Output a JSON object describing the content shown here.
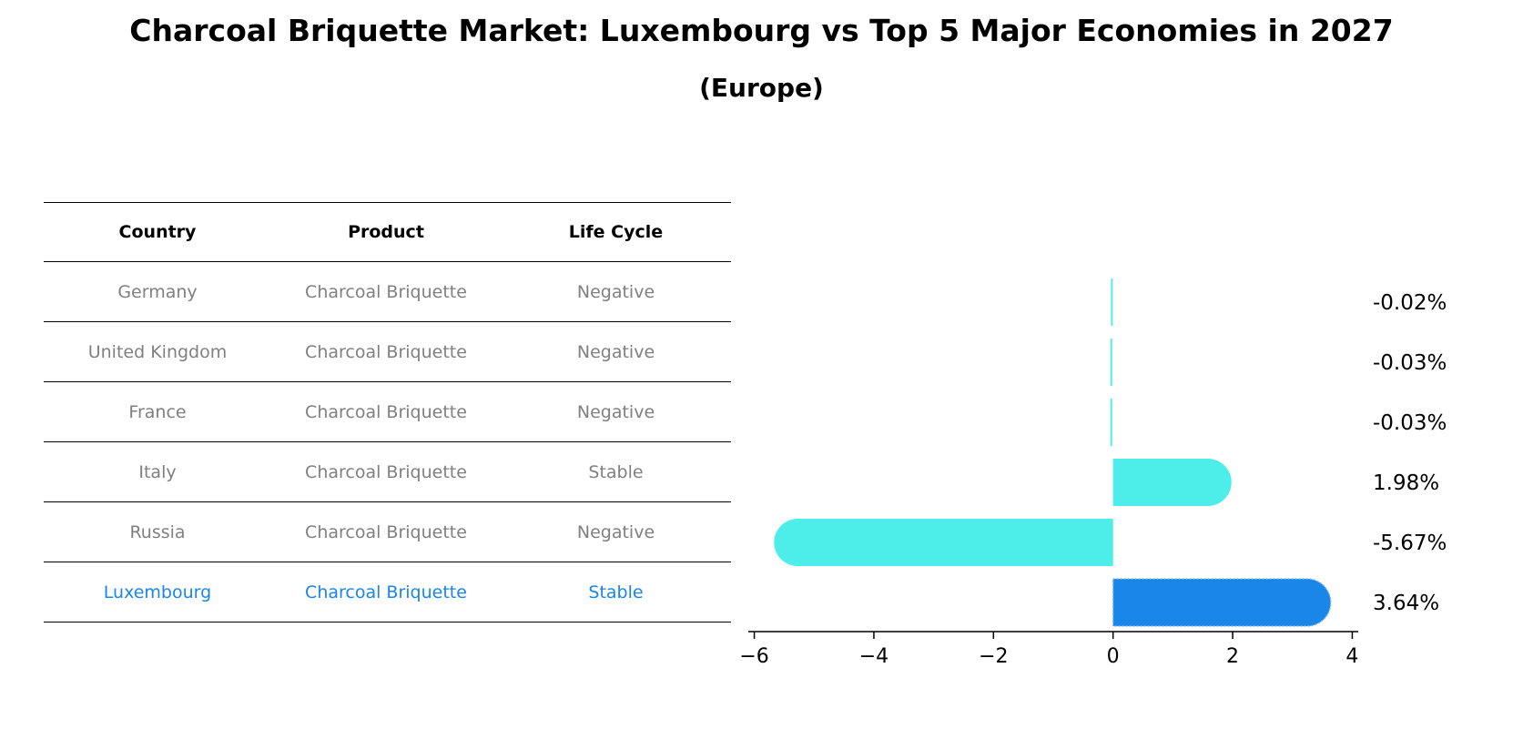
{
  "title": "Charcoal Briquette Market: Luxembourg vs Top 5 Major Economies in 2027",
  "subtitle": "(Europe)",
  "colors": {
    "bar": "#4deeea",
    "highlight": "#1a86e8"
  },
  "table": {
    "headers": [
      "Country",
      "Product",
      "Life Cycle"
    ],
    "rows": [
      [
        "Germany",
        "Charcoal Briquette",
        "Negative"
      ],
      [
        "United Kingdom",
        "Charcoal Briquette",
        "Negative"
      ],
      [
        "France",
        "Charcoal Briquette",
        "Negative"
      ],
      [
        "Italy",
        "Charcoal Briquette",
        "Stable"
      ],
      [
        "Russia",
        "Charcoal Briquette",
        "Negative"
      ],
      [
        "Luxembourg",
        "Charcoal Briquette",
        "Stable"
      ]
    ]
  },
  "chart_data": {
    "type": "bar",
    "orientation": "horizontal",
    "categories": [
      "Germany",
      "United Kingdom",
      "France",
      "Italy",
      "Russia",
      "Luxembourg"
    ],
    "values": [
      -0.02,
      -0.03,
      -0.03,
      1.98,
      -5.67,
      3.64
    ],
    "value_labels": [
      "-0.02%",
      "-0.03%",
      "-0.03%",
      "1.98%",
      "-5.67%",
      "3.64%"
    ],
    "highlight": "Luxembourg",
    "xlim": [
      -6.1,
      4.1
    ],
    "xticks": [
      -6,
      -4,
      -2,
      0,
      2,
      4
    ],
    "xtick_labels": [
      "−6",
      "−4",
      "−2",
      "0",
      "2",
      "4"
    ],
    "grid": false
  }
}
